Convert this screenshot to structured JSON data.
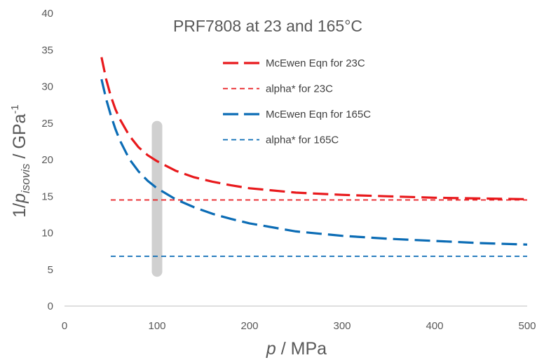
{
  "chart_data": {
    "type": "line",
    "title": "PRF7808 at 23 and 165°C",
    "xlabel": {
      "italic": "p",
      "rest": " / MPa"
    },
    "ylabel": {
      "prefix": "1/",
      "italic": "p",
      "sub": "isovis",
      "mid": " / GPa",
      "sup": "-1"
    },
    "xlim": [
      0,
      500
    ],
    "ylim": [
      0,
      40
    ],
    "x_ticks": [
      0,
      100,
      200,
      300,
      400,
      500
    ],
    "y_ticks": [
      0,
      5,
      10,
      15,
      20,
      25,
      30,
      35,
      40
    ],
    "grid": false,
    "legend_position": "top-right",
    "highlight_band": {
      "x": 100,
      "y_range": [
        4,
        25.3
      ],
      "color": "#d0d0d0"
    },
    "series": [
      {
        "name": "McEwen Eqn for 23C",
        "color": "#e8191c",
        "style": "long-dash",
        "x": [
          40,
          45,
          50,
          55,
          60,
          70,
          80,
          90,
          100,
          120,
          140,
          160,
          180,
          200,
          250,
          300,
          350,
          400,
          450,
          500
        ],
        "y": [
          34.0,
          31.0,
          28.7,
          26.9,
          25.5,
          23.3,
          21.7,
          20.6,
          19.8,
          18.5,
          17.6,
          17.0,
          16.5,
          16.1,
          15.5,
          15.2,
          15.0,
          14.8,
          14.7,
          14.6
        ]
      },
      {
        "name": "alpha* for 23C",
        "color": "#e8191c",
        "style": "short-dash",
        "x": [
          50,
          500
        ],
        "y": [
          14.5,
          14.5
        ]
      },
      {
        "name": "McEwen Eqn for 165C",
        "color": "#0b6cb5",
        "style": "long-dash",
        "x": [
          40,
          45,
          50,
          55,
          60,
          70,
          80,
          90,
          100,
          120,
          140,
          160,
          180,
          200,
          250,
          300,
          350,
          400,
          450,
          500
        ],
        "y": [
          31.0,
          28.3,
          26.1,
          24.2,
          22.6,
          20.1,
          18.4,
          17.1,
          16.1,
          14.6,
          13.5,
          12.6,
          11.9,
          11.3,
          10.2,
          9.6,
          9.2,
          8.9,
          8.6,
          8.4
        ]
      },
      {
        "name": "alpha* for 165C",
        "color": "#0b6cb5",
        "style": "short-dash",
        "x": [
          50,
          500
        ],
        "y": [
          6.8,
          6.8
        ]
      }
    ]
  }
}
